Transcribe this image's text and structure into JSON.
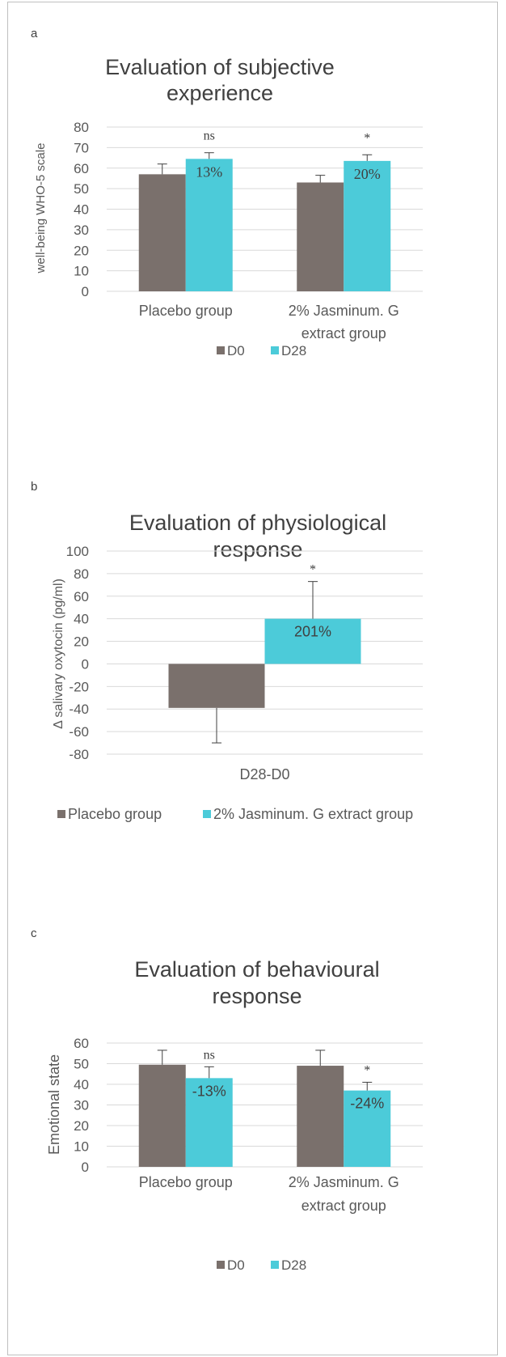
{
  "frame_color": "#bfbfbf",
  "colors": {
    "d0": "#7a706c",
    "d28": "#4ccbd9",
    "grid": "#d9d9d9",
    "axis_text": "#595959",
    "title_text": "#404040"
  },
  "chart_data": [
    {
      "panel_label": "a",
      "type": "bar",
      "title_lines": [
        "Evaluation of subjective",
        "experience"
      ],
      "ylabel": "well-being WHO-5 scale",
      "xlabel": "",
      "ylim": [
        0,
        80
      ],
      "yticks": [
        "0",
        "10",
        "20",
        "30",
        "40",
        "50",
        "60",
        "70",
        "80"
      ],
      "grid": true,
      "legend_position": "bottom",
      "categories": [
        {
          "lines": [
            "Placebo group"
          ]
        },
        {
          "lines": [
            "2% Jasminum. G",
            "extract group"
          ]
        }
      ],
      "series": [
        {
          "name": "D0",
          "values": [
            57,
            53
          ],
          "errors": [
            5,
            3.5
          ]
        },
        {
          "name": "D28",
          "values": [
            64.5,
            63.5
          ],
          "errors": [
            3,
            3
          ]
        }
      ],
      "bar_labels": [
        "13%",
        "20%"
      ],
      "significance": [
        "ns",
        "*"
      ]
    },
    {
      "panel_label": "b",
      "type": "bar",
      "title_lines": [
        "Evaluation of physiological",
        "response"
      ],
      "ylabel": "Δ salivary oxytocin (pg/ml)",
      "xlabel": "",
      "ylim": [
        -80,
        100
      ],
      "yticks": [
        "-80",
        "-60",
        "-40",
        "-20",
        "0",
        "20",
        "40",
        "60",
        "80",
        "100"
      ],
      "grid": true,
      "legend_position": "bottom",
      "categories": [
        {
          "lines": [
            "D28-D0"
          ]
        }
      ],
      "series": [
        {
          "name": "Placebo group",
          "values": [
            -39
          ],
          "errors": [
            31
          ]
        },
        {
          "name": "2% Jasminum. G extract group",
          "values": [
            40
          ],
          "errors": [
            33
          ]
        }
      ],
      "bar_labels": [
        "201%"
      ],
      "significance": [
        "*"
      ]
    },
    {
      "panel_label": "c",
      "type": "bar",
      "title_lines": [
        "Evaluation of behavioural",
        "response"
      ],
      "ylabel": "Emotional state",
      "xlabel": "",
      "ylim": [
        0,
        60
      ],
      "yticks": [
        "0",
        "10",
        "20",
        "30",
        "40",
        "50",
        "60"
      ],
      "grid": true,
      "legend_position": "bottom",
      "categories": [
        {
          "lines": [
            "Placebo group"
          ]
        },
        {
          "lines": [
            "2% Jasminum. G",
            "extract  group"
          ]
        }
      ],
      "series": [
        {
          "name": "D0",
          "values": [
            49.5,
            49
          ],
          "errors": [
            7,
            7.5
          ]
        },
        {
          "name": "D28",
          "values": [
            43,
            37
          ],
          "errors": [
            5.5,
            4
          ]
        }
      ],
      "bar_labels": [
        "-13%",
        "-24%"
      ],
      "significance": [
        "ns",
        "*"
      ]
    }
  ]
}
